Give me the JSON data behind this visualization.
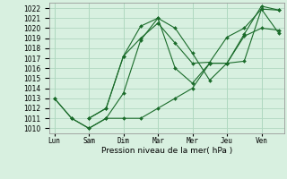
{
  "xlabel": "Pression niveau de la mer( hPa )",
  "background_color": "#d8f0e0",
  "plot_bg_color": "#d8f0e0",
  "grid_color": "#b0d8c0",
  "line_color": "#1a6b2a",
  "x_labels": [
    "Lun",
    "Sam",
    "Dim",
    "Mar",
    "Mer",
    "Jeu",
    "Ven"
  ],
  "x_positions": [
    0,
    1,
    2,
    3,
    4,
    5,
    6
  ],
  "ylim": [
    1009.5,
    1022.5
  ],
  "yticks": [
    1010,
    1011,
    1012,
    1013,
    1014,
    1015,
    1016,
    1017,
    1018,
    1019,
    1020,
    1021,
    1022
  ],
  "lines": [
    {
      "x": [
        0.0,
        0.5,
        1.0,
        1.5,
        2.0,
        2.5,
        3.0,
        3.5,
        4.0,
        4.5,
        5.0,
        5.5,
        6.0,
        6.5
      ],
      "y": [
        1013,
        1011,
        1010,
        1011,
        1011,
        1011,
        1012,
        1013,
        1014,
        1016.5,
        1016.5,
        1019.2,
        1020.0,
        1019.8
      ]
    },
    {
      "x": [
        0.0,
        0.5,
        1.0,
        1.5,
        2.0,
        2.5,
        3.0,
        3.5,
        4.0,
        4.5,
        5.0,
        5.5,
        6.0,
        6.5
      ],
      "y": [
        1013,
        1011,
        1010,
        1011,
        1013.5,
        1018.8,
        1021.0,
        1020.0,
        1017.5,
        1014.8,
        1016.5,
        1016.7,
        1021.9,
        1021.8
      ]
    },
    {
      "x": [
        1.0,
        1.5,
        2.0,
        2.5,
        3.0,
        3.5,
        4.0,
        4.5,
        5.0,
        5.5,
        6.0,
        6.5
      ],
      "y": [
        1011,
        1012,
        1017.2,
        1020.2,
        1021.0,
        1016.0,
        1014.5,
        1016.5,
        1016.5,
        1019.4,
        1022.2,
        1021.8
      ]
    },
    {
      "x": [
        1.0,
        1.5,
        2.0,
        2.5,
        3.0,
        3.5,
        4.0,
        4.5,
        5.0,
        5.5,
        6.0,
        6.5
      ],
      "y": [
        1011,
        1012,
        1017.2,
        1019.0,
        1020.5,
        1018.5,
        1016.5,
        1016.6,
        1019.1,
        1020.0,
        1021.9,
        1019.5
      ]
    }
  ]
}
